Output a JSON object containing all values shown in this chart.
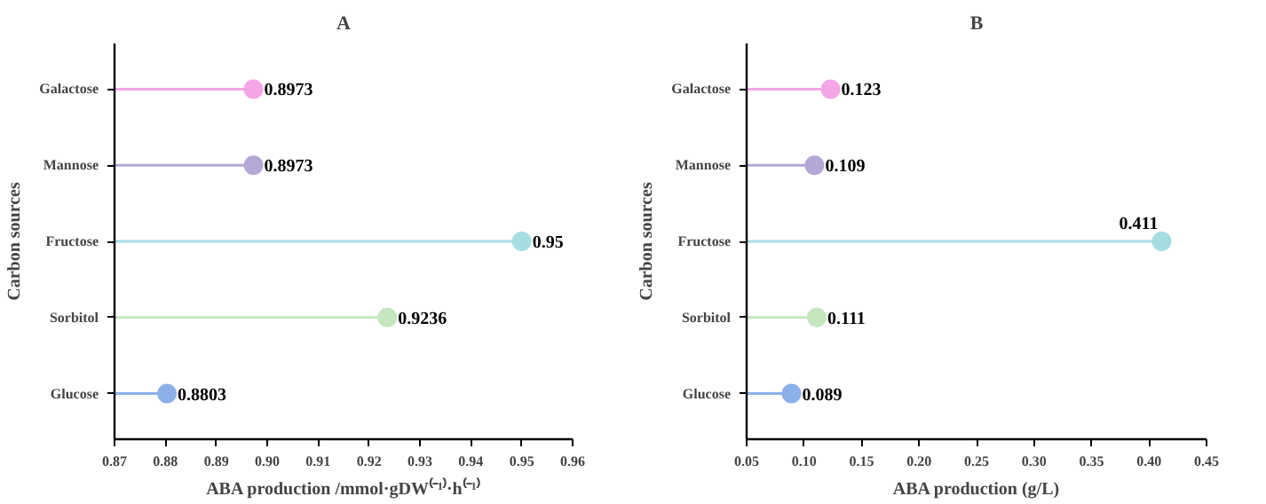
{
  "chart_data": [
    {
      "type": "lollipop",
      "orientation": "horizontal",
      "title": "A",
      "xlabel": "ABA production /mmol·gDW⁽⁻¹⁾·h⁽⁻¹⁾",
      "ylabel": "Carbon sources",
      "categories": [
        "Galactose",
        "Mannose",
        "Fructose",
        "Sorbitol",
        "Glucose"
      ],
      "values": [
        0.8973,
        0.8973,
        0.95,
        0.9236,
        0.8803
      ],
      "colors": [
        "#f4a6e6",
        "#b4a8d6",
        "#a6dde0",
        "#c6e6c0",
        "#8cb0ea"
      ],
      "xlim": [
        0.87,
        0.96
      ],
      "xticks": [
        0.87,
        0.88,
        0.89,
        {
          "value": 0.9,
          "label": "0.90"
        },
        0.91,
        0.92,
        0.93,
        0.94,
        0.95,
        0.96
      ],
      "data_labels": true,
      "grid": false,
      "marker": "circle",
      "legend": false
    },
    {
      "type": "lollipop",
      "orientation": "horizontal",
      "title": "B",
      "xlabel": "ABA production (g/L)",
      "ylabel": "Carbon sources",
      "categories": [
        "Galactose",
        "Mannose",
        "Fructose",
        "Sorbitol",
        "Glucose"
      ],
      "values": [
        0.123,
        0.109,
        0.411,
        0.111,
        0.089
      ],
      "colors": [
        "#f4a6e6",
        "#b4a8d6",
        "#a6dde0",
        "#c6e6c0",
        "#8cb0ea"
      ],
      "xlim": [
        0.05,
        0.45
      ],
      "xticks": [
        0.05,
        {
          "value": 0.1,
          "label": "0.10"
        },
        0.15,
        {
          "value": 0.2,
          "label": "0.20"
        },
        0.25,
        {
          "value": 0.3,
          "label": "0.30"
        },
        0.35,
        {
          "value": 0.4,
          "label": "0.40"
        },
        0.45
      ],
      "data_labels": true,
      "grid": false,
      "marker": "circle",
      "legend": false
    }
  ]
}
